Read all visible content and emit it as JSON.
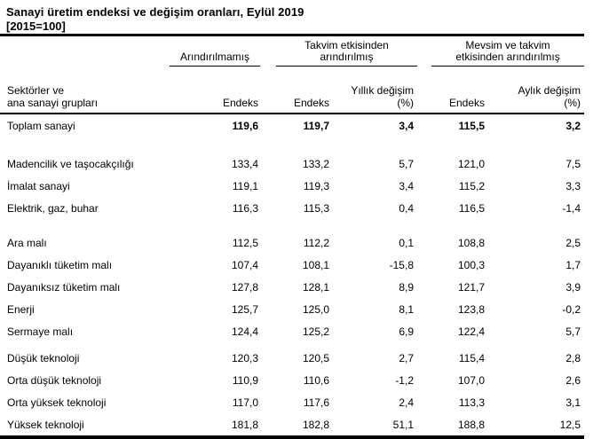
{
  "title": "Sanayi üretim endeksi ve değişim oranları, Eylül 2019",
  "subtitle": "[2015=100]",
  "table": {
    "row_header": {
      "line1": "Sektörler ve",
      "line2": "ana sanayi grupları"
    },
    "groups": [
      {
        "line1": "Arındırılmamış",
        "line2": ""
      },
      {
        "line1": "Takvim etkisinden",
        "line2": "arındırılmış"
      },
      {
        "line1": "Mevsim ve takvim",
        "line2": "etkisinden arındırılmış"
      }
    ],
    "columns": [
      {
        "line1": "",
        "line2": "Endeks"
      },
      {
        "line1": "",
        "line2": "Endeks"
      },
      {
        "line1": "Yıllık değişim",
        "line2": "(%)"
      },
      {
        "line1": "",
        "line2": "Endeks"
      },
      {
        "line1": "Aylık değişim",
        "line2": "(%)"
      }
    ],
    "sections": [
      {
        "rows": [
          {
            "label": "Toplam sanayi",
            "bold_values": true,
            "values": [
              "119,6",
              "119,7",
              "3,4",
              "115,5",
              "3,2"
            ]
          }
        ]
      },
      {
        "rows": [
          {
            "label": "Madencilik ve taşocakçılığı",
            "values": [
              "133,4",
              "133,2",
              "5,7",
              "121,0",
              "7,5"
            ]
          },
          {
            "label": "İmalat sanayi",
            "values": [
              "119,1",
              "119,3",
              "3,4",
              "115,2",
              "3,3"
            ]
          },
          {
            "label": "Elektrik, gaz, buhar",
            "values": [
              "116,3",
              "115,3",
              "0,4",
              "116,5",
              "-1,4"
            ]
          }
        ]
      },
      {
        "rows": [
          {
            "label": "Ara malı",
            "values": [
              "112,5",
              "112,2",
              "0,1",
              "108,8",
              "2,5"
            ]
          },
          {
            "label": "Dayanıklı tüketim malı",
            "values": [
              "107,4",
              "108,1",
              "-15,8",
              "100,3",
              "1,7"
            ]
          },
          {
            "label": "Dayanıksız tüketim malı",
            "values": [
              "127,8",
              "128,1",
              "8,9",
              "121,7",
              "3,9"
            ]
          },
          {
            "label": "Enerji",
            "values": [
              "125,7",
              "125,0",
              "8,1",
              "123,8",
              "-0,2"
            ]
          },
          {
            "label": "Sermaye malı",
            "values": [
              "124,4",
              "125,2",
              "6,9",
              "122,4",
              "5,7"
            ]
          }
        ]
      },
      {
        "rows": [
          {
            "label": "Düşük teknoloji",
            "values": [
              "120,3",
              "120,5",
              "2,7",
              "115,4",
              "2,8"
            ]
          },
          {
            "label": "Orta düşük teknoloji",
            "values": [
              "110,9",
              "110,6",
              "-1,2",
              "107,0",
              "2,6"
            ]
          },
          {
            "label": "Orta yüksek teknoloji",
            "values": [
              "117,0",
              "117,6",
              "2,4",
              "113,3",
              "3,1"
            ]
          },
          {
            "label": "Yüksek teknoloji",
            "values": [
              "181,8",
              "182,8",
              "51,1",
              "188,8",
              "12,5"
            ]
          }
        ]
      }
    ]
  }
}
